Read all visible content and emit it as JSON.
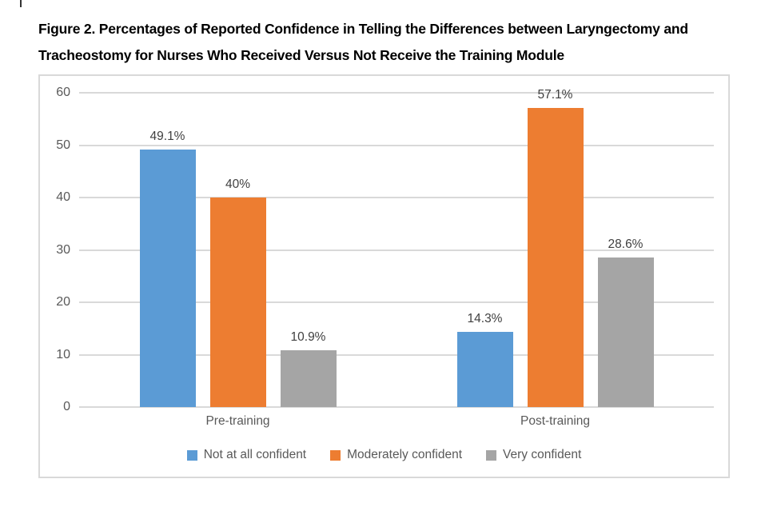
{
  "caption": {
    "line1": "Figure 2. Percentages of Reported Confidence in Telling the Differences between Laryngectomy and",
    "line2": "Tracheostomy for Nurses Who Received Versus Not Receive the Training Module"
  },
  "chart_data": {
    "type": "bar",
    "title": "Figure 2. Percentages of Reported Confidence in Telling the Differences between Laryngectomy and Tracheostomy for Nurses Who Received Versus Not Receive the Training Module",
    "categories": [
      "Pre-training",
      "Post-training"
    ],
    "series": [
      {
        "name": "Not at all confident",
        "color": "#5B9BD5",
        "values": [
          49.1,
          14.3
        ],
        "value_labels": [
          "49.1%",
          "14.3%"
        ]
      },
      {
        "name": "Moderately confident",
        "color": "#ED7D31",
        "values": [
          40,
          57.1
        ],
        "value_labels": [
          "40%",
          "57.1%"
        ]
      },
      {
        "name": "Very confident",
        "color": "#A5A5A5",
        "values": [
          10.9,
          28.6
        ],
        "value_labels": [
          "10.9%",
          "28.6%"
        ]
      }
    ],
    "xlabel": "",
    "ylabel": "",
    "ylim": [
      0,
      60
    ],
    "yticks": [
      0,
      10,
      20,
      30,
      40,
      50,
      60
    ],
    "grid": true,
    "legend_position": "bottom"
  },
  "colors": {
    "bar_blue": "#5B9BD5",
    "bar_orange": "#ED7D31",
    "bar_gray": "#A5A5A5",
    "gridline": "#D9D9D9",
    "chart_border": "#D9D9D9",
    "axis_text": "#595959",
    "value_label_text": "#404040",
    "caption_text": "#000000"
  }
}
